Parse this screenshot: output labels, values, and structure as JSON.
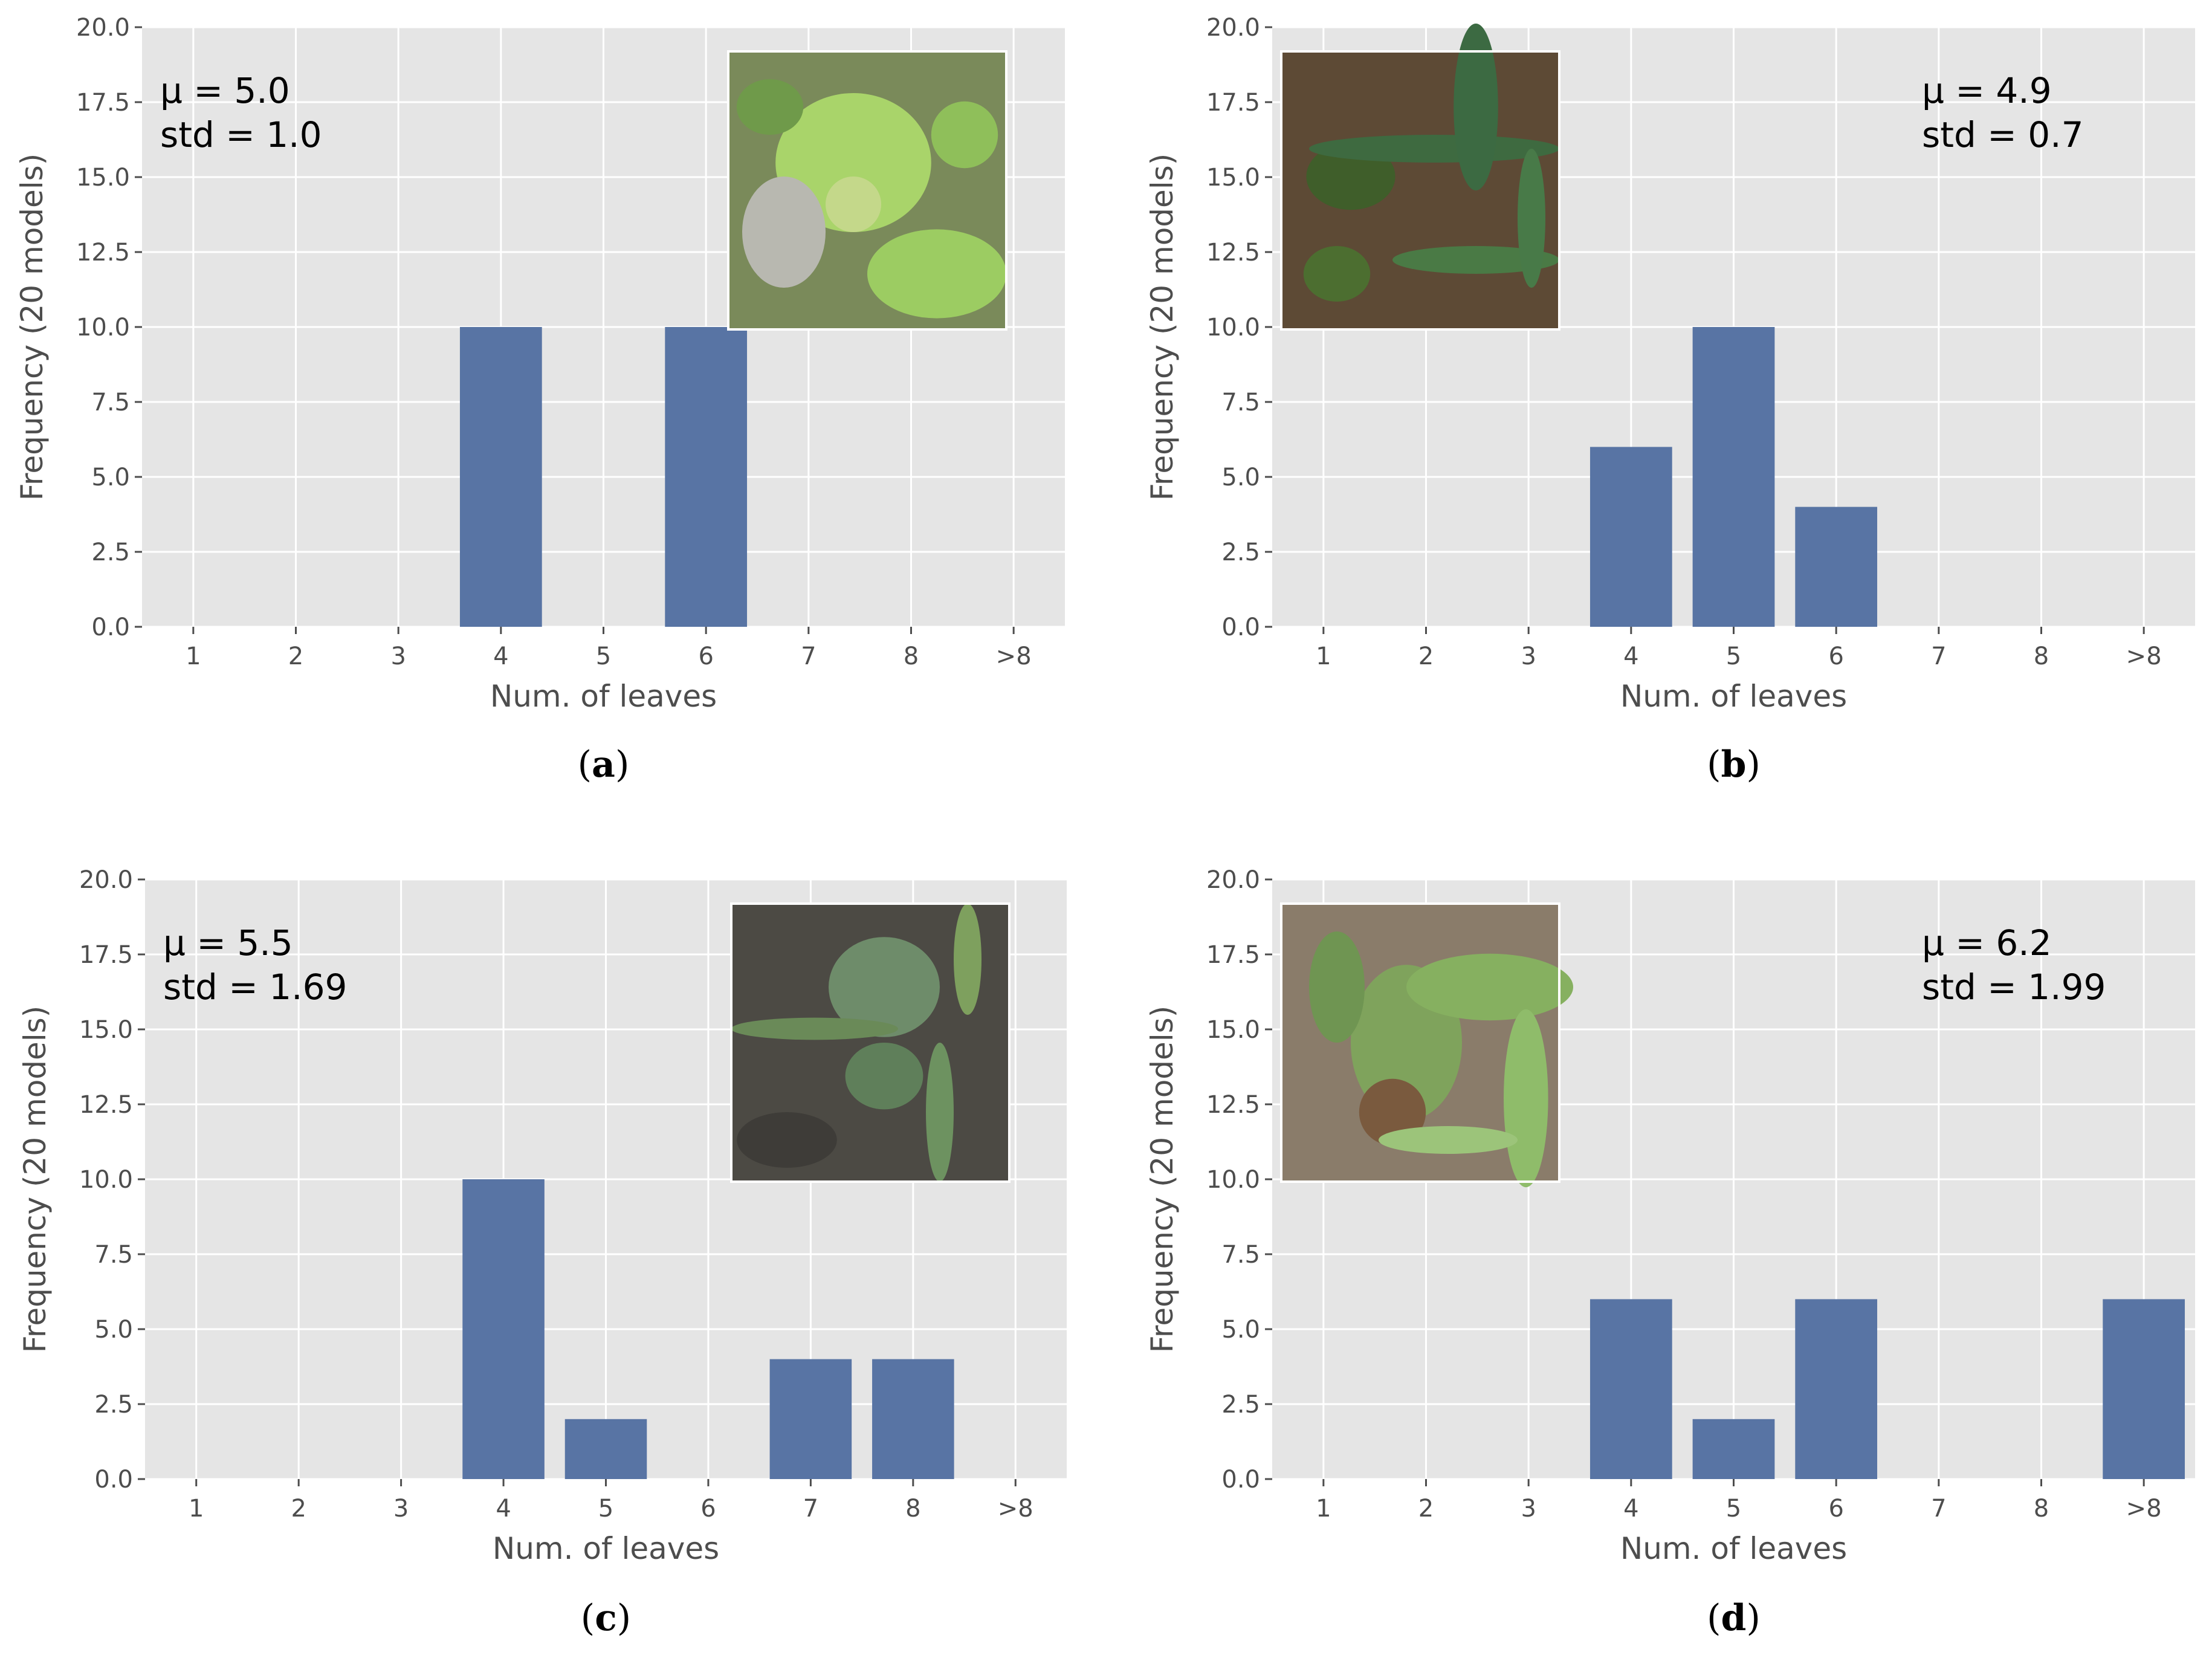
{
  "colors": {
    "panel_bg": "#e5e5e5",
    "grid": "#ffffff",
    "bar": "#5874a4",
    "tick_text": "#4d4d4d"
  },
  "chart_data": [
    {
      "type": "bar",
      "caption": "a",
      "categories": [
        "1",
        "2",
        "3",
        "4",
        "5",
        "6",
        "7",
        "8",
        ">8"
      ],
      "values": [
        0,
        0,
        0,
        10,
        0,
        10,
        0,
        0,
        0
      ],
      "xlabel": "Num. of leaves",
      "ylabel": "Frequency (20 models)",
      "ylim": [
        0,
        20
      ],
      "yticks": [
        "0.0",
        "2.5",
        "5.0",
        "7.5",
        "10.0",
        "12.5",
        "15.0",
        "17.5",
        "20.0"
      ],
      "grid": true,
      "stats": {
        "mu": "μ = 5.0",
        "std": "std = 1.0",
        "position": "top-left"
      },
      "inset_image": "top-right",
      "inset_scene": "light-green-seedling"
    },
    {
      "type": "bar",
      "caption": "b",
      "categories": [
        "1",
        "2",
        "3",
        "4",
        "5",
        "6",
        "7",
        "8",
        ">8"
      ],
      "values": [
        0,
        0,
        0,
        6,
        10,
        4,
        0,
        0,
        0
      ],
      "xlabel": "Num. of leaves",
      "ylabel": "Frequency (20 models)",
      "ylim": [
        0,
        20
      ],
      "yticks": [
        "0.0",
        "2.5",
        "5.0",
        "7.5",
        "10.0",
        "12.5",
        "15.0",
        "17.5",
        "20.0"
      ],
      "grid": true,
      "stats": {
        "mu": "μ = 4.9",
        "std": "std = 0.7",
        "position": "top-right"
      },
      "inset_image": "top-left",
      "inset_scene": "dark-seedling-on-soil"
    },
    {
      "type": "bar",
      "caption": "c",
      "categories": [
        "1",
        "2",
        "3",
        "4",
        "5",
        "6",
        "7",
        "8",
        ">8"
      ],
      "values": [
        0,
        0,
        0,
        10,
        2,
        0,
        4,
        4,
        0
      ],
      "xlabel": "Num. of leaves",
      "ylabel": "Frequency (20 models)",
      "ylim": [
        0,
        20
      ],
      "yticks": [
        "0.0",
        "2.5",
        "5.0",
        "7.5",
        "10.0",
        "12.5",
        "15.0",
        "17.5",
        "20.0"
      ],
      "grid": true,
      "stats": {
        "mu": "μ = 5.5",
        "std": "std = 1.69",
        "position": "top-left"
      },
      "inset_image": "top-right",
      "inset_scene": "muted-seedling-in-grass"
    },
    {
      "type": "bar",
      "caption": "d",
      "categories": [
        "1",
        "2",
        "3",
        "4",
        "5",
        "6",
        "7",
        "8",
        ">8"
      ],
      "values": [
        0,
        0,
        0,
        6,
        2,
        6,
        0,
        0,
        6
      ],
      "xlabel": "Num. of leaves",
      "ylabel": "Frequency (20 models)",
      "ylim": [
        0,
        20
      ],
      "yticks": [
        "0.0",
        "2.5",
        "5.0",
        "7.5",
        "10.0",
        "12.5",
        "15.0",
        "17.5",
        "20.0"
      ],
      "grid": true,
      "stats": {
        "mu": "μ = 6.2",
        "std": "std = 1.99",
        "position": "top-right"
      },
      "inset_image": "top-left",
      "inset_scene": "broadleaf-seedling-with-grass"
    }
  ]
}
